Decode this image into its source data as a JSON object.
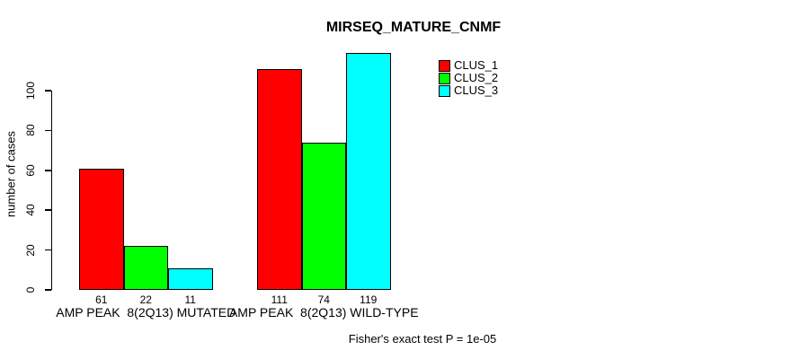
{
  "title": "MIRSEQ_MATURE_CNMF",
  "ylabel": "number of cases",
  "footer": "Fisher's exact test P = 1e-05",
  "chart_data": {
    "type": "bar",
    "title": "MIRSEQ_MATURE_CNMF",
    "xlabel": "",
    "ylabel": "number of cases",
    "categories": [
      "AMP PEAK  8(2Q13) MUTATED",
      "AMP PEAK  8(2Q13) WILD-TYPE"
    ],
    "series": [
      {
        "name": "CLUS_1",
        "color": "#ff0000",
        "values": [
          61,
          111
        ]
      },
      {
        "name": "CLUS_2",
        "color": "#00ff00",
        "values": [
          22,
          74
        ]
      },
      {
        "name": "CLUS_3",
        "color": "#00ffff",
        "values": [
          11,
          119
        ]
      }
    ],
    "bar_value_labels": [
      [
        61,
        22,
        11
      ],
      [
        111,
        74,
        119
      ]
    ],
    "yticks": [
      0,
      20,
      40,
      60,
      80,
      100
    ],
    "ylim": [
      0,
      120
    ],
    "grid": false,
    "legend_entries": [
      "CLUS_1",
      "CLUS_2",
      "CLUS_3"
    ],
    "legend_position": "top-right-inside",
    "annotation": "Fisher's exact test P = 1e-05"
  }
}
